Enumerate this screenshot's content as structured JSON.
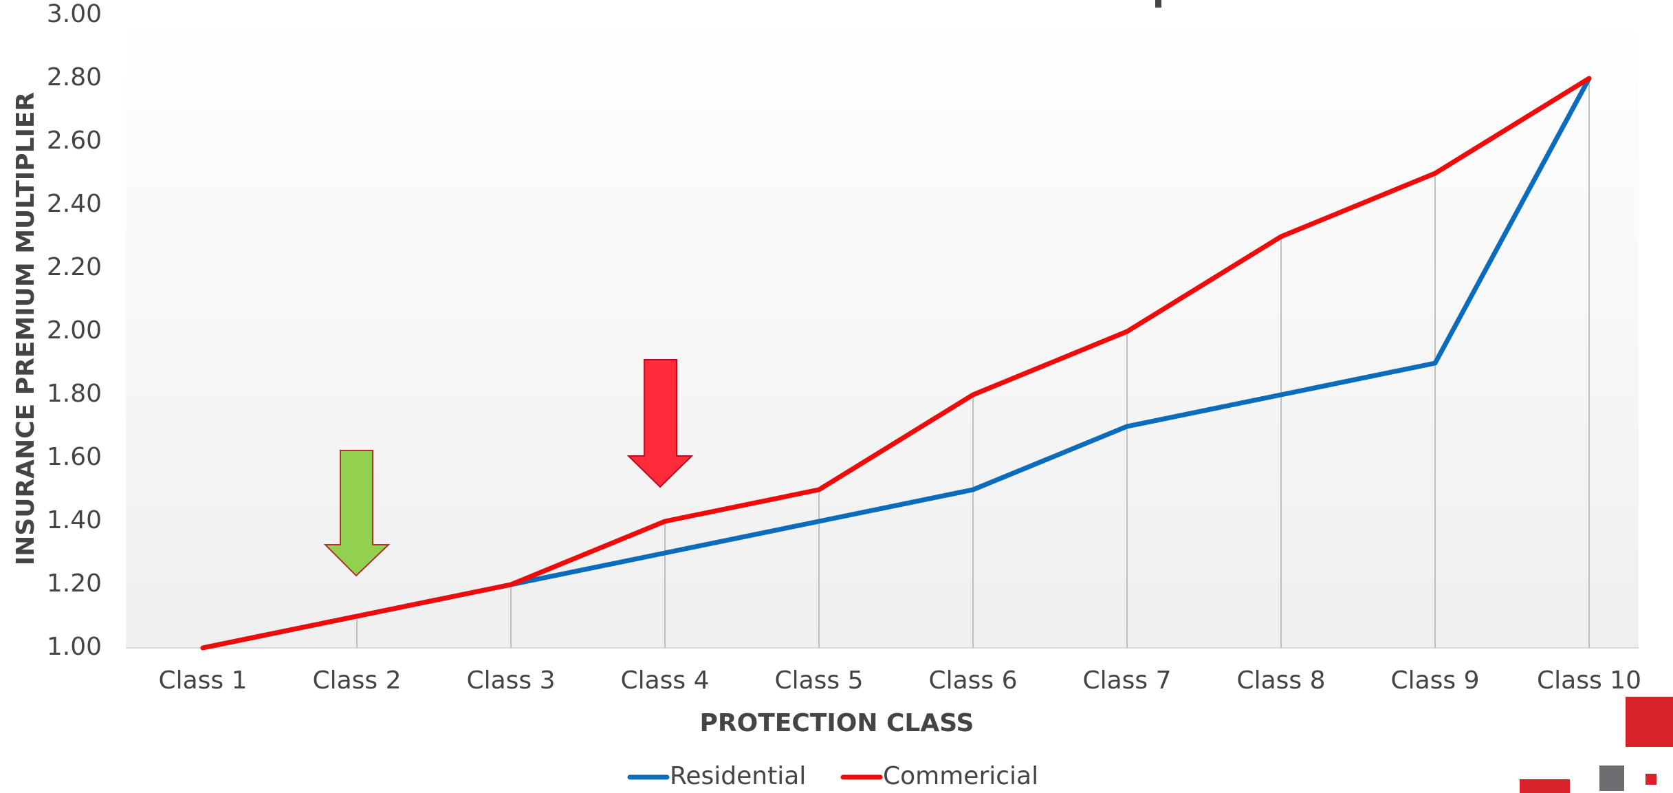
{
  "chart_data": {
    "type": "line",
    "y_label": "INSURANCE PREMIUM MULTIPLIER",
    "x_label": "PROTECTION CLASS",
    "categories": [
      "Class 1",
      "Class 2",
      "Class 3",
      "Class 4",
      "Class 5",
      "Class 6",
      "Class 7",
      "Class 8",
      "Class 9",
      "Class 10"
    ],
    "series": [
      {
        "name": "Residential",
        "color": "#0a6cba",
        "values": [
          1.0,
          1.1,
          1.2,
          1.3,
          1.4,
          1.5,
          1.7,
          1.8,
          1.9,
          2.8
        ]
      },
      {
        "name": "Commericial",
        "color": "#f00a0a",
        "values": [
          1.0,
          1.1,
          1.2,
          1.4,
          1.5,
          1.8,
          2.0,
          2.3,
          2.5,
          2.8
        ]
      }
    ],
    "ylim": [
      1,
      3
    ],
    "yticks": [
      {
        "value": 1,
        "label": "1.00"
      },
      {
        "value": 1.2,
        "label": "1.20"
      },
      {
        "value": 1.4,
        "label": "1.40"
      },
      {
        "value": 1.6,
        "label": "1.60"
      },
      {
        "value": 1.8,
        "label": "1.80"
      },
      {
        "value": 2,
        "label": "2.00"
      },
      {
        "value": 2.2,
        "label": "2.20"
      },
      {
        "value": 2.4,
        "label": "2.40"
      },
      {
        "value": 2.6,
        "label": "2.60"
      },
      {
        "value": 2.8,
        "label": "2.80"
      },
      {
        "value": 3,
        "label": "3.00"
      }
    ],
    "drop_lines": true,
    "legend": "bottom"
  }
}
